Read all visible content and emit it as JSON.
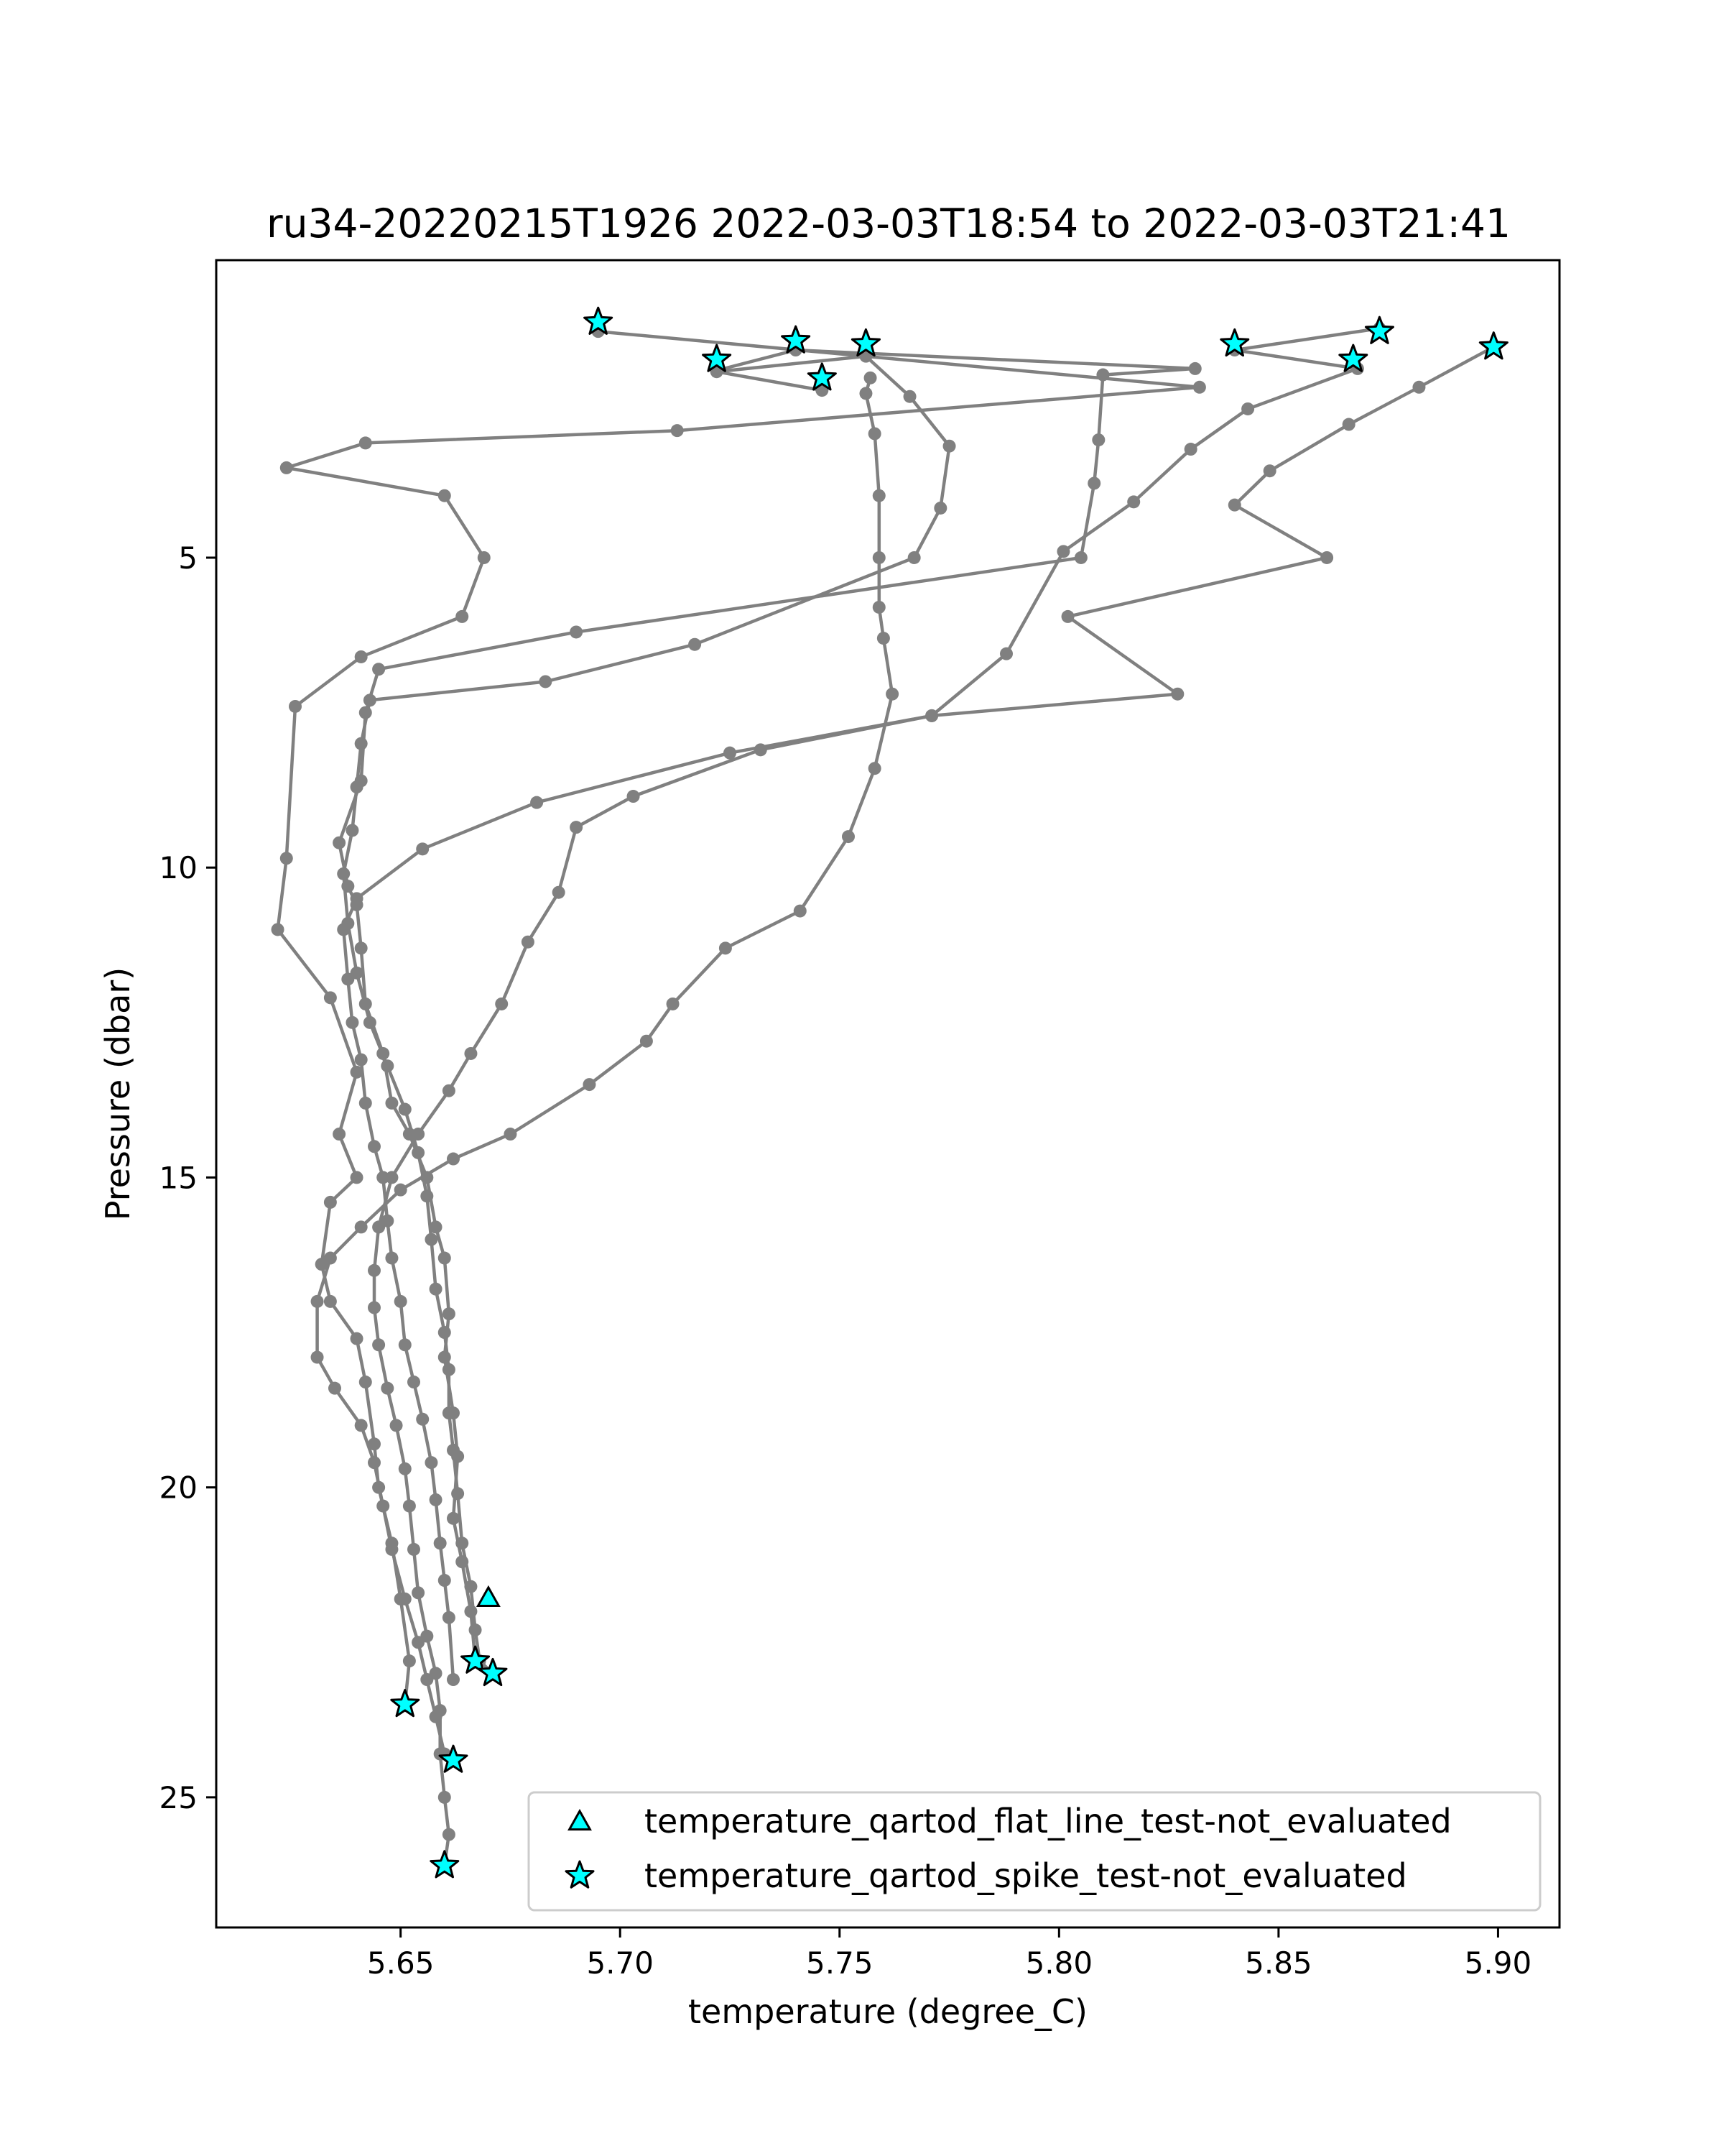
{
  "chart_data": {
    "type": "scatter",
    "title": "ru34-20220215T1926 2022-03-03T18:54 to 2022-03-03T21:41",
    "xlabel": "temperature (degree_C)",
    "ylabel": "Pressure (dbar)",
    "xlim": [
      5.608,
      5.914
    ],
    "ylim": [
      27.1,
      0.2
    ],
    "y_inverted": true,
    "xticks": [
      5.65,
      5.7,
      5.75,
      5.8,
      5.85,
      5.9
    ],
    "xtick_labels": [
      "5.65",
      "5.70",
      "5.75",
      "5.80",
      "5.85",
      "5.90"
    ],
    "yticks": [
      5,
      10,
      15,
      20,
      25
    ],
    "ytick_labels": [
      "5",
      "10",
      "15",
      "20",
      "25"
    ],
    "grid": false,
    "legend_position": "lower-right",
    "colors": {
      "profile": "#808080",
      "flag_fill": "#00ffff",
      "flag_edge": "#000000"
    },
    "profiles": [
      {
        "points": [
          [
            5.695,
            1.35
          ],
          [
            5.832,
            2.25
          ],
          [
            5.713,
            2.95
          ],
          [
            5.642,
            3.15
          ],
          [
            5.624,
            3.55
          ],
          [
            5.66,
            4.0
          ],
          [
            5.669,
            5.0
          ],
          [
            5.664,
            5.95
          ],
          [
            5.641,
            6.6
          ],
          [
            5.626,
            7.4
          ],
          [
            5.624,
            9.85
          ],
          [
            5.622,
            11.0
          ],
          [
            5.634,
            12.1
          ],
          [
            5.64,
            13.3
          ],
          [
            5.636,
            14.3
          ],
          [
            5.64,
            15.0
          ],
          [
            5.634,
            15.4
          ],
          [
            5.632,
            16.4
          ],
          [
            5.634,
            17.0
          ],
          [
            5.64,
            17.6
          ],
          [
            5.642,
            18.3
          ],
          [
            5.644,
            19.3
          ],
          [
            5.645,
            20.0
          ],
          [
            5.648,
            20.9
          ],
          [
            5.65,
            21.8
          ],
          [
            5.652,
            22.8
          ],
          [
            5.651,
            23.5
          ]
        ]
      },
      {
        "points": [
          [
            5.722,
            1.98
          ],
          [
            5.74,
            1.65
          ],
          [
            5.831,
            1.95
          ],
          [
            5.81,
            2.05
          ],
          [
            5.809,
            3.1
          ],
          [
            5.808,
            3.8
          ],
          [
            5.805,
            5.0
          ],
          [
            5.69,
            6.2
          ],
          [
            5.645,
            6.8
          ],
          [
            5.642,
            7.5
          ],
          [
            5.641,
            8.6
          ],
          [
            5.636,
            9.6
          ],
          [
            5.638,
            10.3
          ],
          [
            5.64,
            10.6
          ],
          [
            5.641,
            11.3
          ],
          [
            5.642,
            12.2
          ],
          [
            5.646,
            13.0
          ],
          [
            5.648,
            13.8
          ],
          [
            5.652,
            14.3
          ],
          [
            5.656,
            15.0
          ],
          [
            5.658,
            15.8
          ],
          [
            5.66,
            16.3
          ],
          [
            5.661,
            17.2
          ],
          [
            5.66,
            17.9
          ],
          [
            5.662,
            18.8
          ],
          [
            5.663,
            19.5
          ],
          [
            5.662,
            20.5
          ],
          [
            5.664,
            21.2
          ],
          [
            5.666,
            22.0
          ],
          [
            5.667,
            22.8
          ]
        ]
      },
      {
        "points": [
          [
            5.746,
            2.3
          ],
          [
            5.722,
            2.0
          ],
          [
            5.756,
            1.75
          ],
          [
            5.766,
            2.4
          ],
          [
            5.775,
            3.2
          ],
          [
            5.773,
            4.2
          ],
          [
            5.767,
            5.0
          ],
          [
            5.717,
            6.4
          ],
          [
            5.683,
            7.0
          ],
          [
            5.643,
            7.3
          ],
          [
            5.641,
            8.0
          ],
          [
            5.64,
            8.7
          ],
          [
            5.639,
            9.4
          ],
          [
            5.637,
            10.1
          ],
          [
            5.638,
            10.9
          ],
          [
            5.64,
            11.7
          ],
          [
            5.643,
            12.5
          ],
          [
            5.647,
            13.2
          ],
          [
            5.651,
            13.9
          ],
          [
            5.654,
            14.6
          ],
          [
            5.656,
            15.3
          ],
          [
            5.657,
            16.0
          ],
          [
            5.658,
            16.8
          ],
          [
            5.66,
            17.5
          ],
          [
            5.661,
            18.1
          ],
          [
            5.661,
            18.8
          ],
          [
            5.662,
            19.4
          ],
          [
            5.663,
            20.1
          ],
          [
            5.664,
            20.9
          ],
          [
            5.666,
            21.6
          ],
          [
            5.667,
            22.3
          ],
          [
            5.668,
            22.8
          ],
          [
            5.671,
            23.0
          ]
        ]
      },
      {
        "points": [
          [
            5.757,
            2.1
          ],
          [
            5.756,
            2.35
          ],
          [
            5.758,
            3.0
          ],
          [
            5.759,
            4.0
          ],
          [
            5.759,
            5.0
          ],
          [
            5.759,
            5.8
          ],
          [
            5.76,
            6.3
          ],
          [
            5.762,
            7.2
          ],
          [
            5.758,
            8.4
          ],
          [
            5.752,
            9.5
          ],
          [
            5.741,
            10.7
          ],
          [
            5.724,
            11.3
          ],
          [
            5.712,
            12.2
          ],
          [
            5.706,
            12.8
          ],
          [
            5.693,
            13.5
          ],
          [
            5.675,
            14.3
          ],
          [
            5.662,
            14.7
          ],
          [
            5.65,
            15.2
          ],
          [
            5.641,
            15.8
          ],
          [
            5.634,
            16.3
          ],
          [
            5.631,
            17.0
          ],
          [
            5.631,
            17.9
          ],
          [
            5.635,
            18.4
          ],
          [
            5.641,
            19.0
          ],
          [
            5.644,
            19.6
          ],
          [
            5.646,
            20.3
          ],
          [
            5.648,
            21.0
          ],
          [
            5.651,
            21.8
          ],
          [
            5.654,
            22.5
          ],
          [
            5.656,
            23.1
          ],
          [
            5.658,
            23.7
          ],
          [
            5.66,
            24.3
          ],
          [
            5.662,
            24.4
          ]
        ]
      },
      {
        "points": [
          [
            5.873,
            1.3
          ],
          [
            5.84,
            1.65
          ],
          [
            5.868,
            1.95
          ],
          [
            5.843,
            2.6
          ],
          [
            5.83,
            3.25
          ],
          [
            5.817,
            4.1
          ],
          [
            5.801,
            4.9
          ],
          [
            5.788,
            6.55
          ],
          [
            5.771,
            7.55
          ],
          [
            5.725,
            8.15
          ],
          [
            5.681,
            8.95
          ],
          [
            5.655,
            9.7
          ],
          [
            5.64,
            10.5
          ],
          [
            5.637,
            11.0
          ],
          [
            5.638,
            11.8
          ],
          [
            5.639,
            12.5
          ],
          [
            5.641,
            13.1
          ],
          [
            5.642,
            13.8
          ],
          [
            5.644,
            14.5
          ],
          [
            5.646,
            15.0
          ],
          [
            5.647,
            15.7
          ],
          [
            5.648,
            16.3
          ],
          [
            5.65,
            17.0
          ],
          [
            5.651,
            17.7
          ],
          [
            5.653,
            18.3
          ],
          [
            5.655,
            18.9
          ],
          [
            5.657,
            19.6
          ],
          [
            5.658,
            20.2
          ],
          [
            5.659,
            20.9
          ],
          [
            5.66,
            21.5
          ],
          [
            5.661,
            22.1
          ],
          [
            5.662,
            23.1
          ]
        ]
      },
      {
        "points": [
          [
            5.899,
            1.6
          ],
          [
            5.882,
            2.25
          ],
          [
            5.866,
            2.85
          ],
          [
            5.848,
            3.6
          ],
          [
            5.84,
            4.15
          ],
          [
            5.861,
            5.0
          ],
          [
            5.802,
            5.95
          ],
          [
            5.827,
            7.2
          ],
          [
            5.771,
            7.55
          ],
          [
            5.732,
            8.1
          ],
          [
            5.703,
            8.85
          ],
          [
            5.69,
            9.35
          ],
          [
            5.686,
            10.4
          ],
          [
            5.679,
            11.2
          ],
          [
            5.673,
            12.2
          ],
          [
            5.666,
            13.0
          ],
          [
            5.661,
            13.6
          ],
          [
            5.654,
            14.3
          ],
          [
            5.648,
            15.0
          ],
          [
            5.645,
            15.8
          ],
          [
            5.644,
            16.5
          ],
          [
            5.644,
            17.1
          ],
          [
            5.645,
            17.7
          ],
          [
            5.647,
            18.4
          ],
          [
            5.649,
            19.0
          ],
          [
            5.651,
            19.7
          ],
          [
            5.652,
            20.3
          ],
          [
            5.653,
            21.0
          ],
          [
            5.654,
            21.7
          ],
          [
            5.656,
            22.4
          ],
          [
            5.658,
            23.0
          ],
          [
            5.659,
            23.6
          ],
          [
            5.659,
            24.3
          ],
          [
            5.66,
            25.0
          ],
          [
            5.661,
            25.6
          ],
          [
            5.66,
            26.1
          ]
        ]
      }
    ],
    "flags": {
      "temperature_qartod_flat_line_test-not_evaluated": [
        [
          5.67,
          21.8
        ]
      ],
      "temperature_qartod_spike_test-not_evaluated": [
        [
          5.695,
          1.2
        ],
        [
          5.74,
          1.5
        ],
        [
          5.756,
          1.55
        ],
        [
          5.722,
          1.8
        ],
        [
          5.746,
          2.1
        ],
        [
          5.84,
          1.55
        ],
        [
          5.873,
          1.35
        ],
        [
          5.867,
          1.8
        ],
        [
          5.899,
          1.6
        ],
        [
          5.667,
          22.8
        ],
        [
          5.671,
          23.0
        ],
        [
          5.651,
          23.5
        ],
        [
          5.662,
          24.4
        ],
        [
          5.66,
          26.1
        ]
      ]
    },
    "legend": [
      {
        "marker": "triangle",
        "label": "temperature_qartod_flat_line_test-not_evaluated"
      },
      {
        "marker": "star",
        "label": "temperature_qartod_spike_test-not_evaluated"
      }
    ]
  }
}
